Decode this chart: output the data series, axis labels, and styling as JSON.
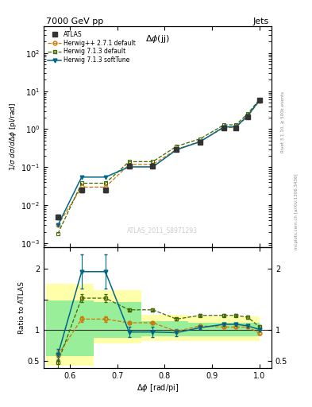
{
  "title_left": "7000 GeV pp",
  "title_right": "Jets",
  "plot_label": "$\\Delta\\phi$(jj)",
  "watermark": "ATLAS_2011_S8971293",
  "ylabel_main": "1/σ;dσ/dΔφ [pl/rad]",
  "ylabel_ratio": "Ratio to ATLAS",
  "xlabel": "Δφ [rad/pi]",
  "right_label": "Rivet 3.1.10, ≥ 500k events",
  "right_label2": "mcplots.cern.ch [arXiv:1306.3436]",
  "atlas_x": [
    0.575,
    0.625,
    0.675,
    0.725,
    0.775,
    0.825,
    0.875,
    0.925,
    0.95,
    0.975,
    1.0
  ],
  "atlas_y": [
    0.005,
    0.025,
    0.025,
    0.105,
    0.105,
    0.3,
    0.45,
    1.05,
    1.05,
    2.1,
    5.8
  ],
  "atlas_yerr": [
    0.0008,
    0.003,
    0.003,
    0.01,
    0.01,
    0.025,
    0.04,
    0.08,
    0.08,
    0.15,
    0.4
  ],
  "herwig271_x": [
    0.575,
    0.625,
    0.675,
    0.725,
    0.775,
    0.825,
    0.875,
    0.925,
    0.95,
    0.975,
    1.0
  ],
  "herwig271_y": [
    0.003,
    0.03,
    0.03,
    0.118,
    0.118,
    0.295,
    0.48,
    1.1,
    1.1,
    2.2,
    5.5
  ],
  "herwig713_x": [
    0.575,
    0.625,
    0.675,
    0.725,
    0.775,
    0.825,
    0.875,
    0.925,
    0.95,
    0.975,
    1.0
  ],
  "herwig713_y": [
    0.0018,
    0.038,
    0.038,
    0.14,
    0.14,
    0.355,
    0.56,
    1.3,
    1.3,
    2.55,
    6.1
  ],
  "herwig713soft_x": [
    0.575,
    0.625,
    0.675,
    0.725,
    0.775,
    0.825,
    0.875,
    0.925,
    0.95,
    0.975,
    1.0
  ],
  "herwig713soft_y": [
    0.003,
    0.055,
    0.055,
    0.102,
    0.102,
    0.288,
    0.47,
    1.15,
    1.15,
    2.25,
    5.85
  ],
  "ratio_herwig271_x": [
    0.575,
    0.625,
    0.675,
    0.725,
    0.775,
    0.825,
    0.875,
    0.925,
    0.95,
    0.975,
    1.0
  ],
  "ratio_herwig271_y": [
    0.6,
    1.18,
    1.18,
    1.12,
    1.12,
    0.98,
    1.07,
    1.05,
    1.05,
    1.05,
    0.95
  ],
  "ratio_herwig271_ye": [
    0.07,
    0.05,
    0.05,
    0.015,
    0.015,
    0.012,
    0.012,
    0.015,
    0.015,
    0.02,
    0.025
  ],
  "ratio_herwig713_x": [
    0.575,
    0.625,
    0.675,
    0.725,
    0.775,
    0.825,
    0.875,
    0.925,
    0.95,
    0.975,
    1.0
  ],
  "ratio_herwig713_y": [
    0.48,
    1.52,
    1.52,
    1.33,
    1.33,
    1.18,
    1.24,
    1.24,
    1.24,
    1.21,
    1.05
  ],
  "ratio_herwig713_ye": [
    0.09,
    0.07,
    0.07,
    0.02,
    0.02,
    0.016,
    0.016,
    0.02,
    0.02,
    0.025,
    0.03
  ],
  "ratio_herwig713soft_x": [
    0.575,
    0.625,
    0.675,
    0.725,
    0.775,
    0.825,
    0.875,
    0.925,
    0.95,
    0.975,
    1.0
  ],
  "ratio_herwig713soft_y": [
    0.6,
    1.95,
    1.95,
    0.97,
    0.97,
    0.96,
    1.04,
    1.095,
    1.095,
    1.07,
    1.01
  ],
  "ratio_herwig713soft_ye": [
    0.09,
    0.28,
    0.28,
    0.08,
    0.08,
    0.06,
    0.02,
    0.02,
    0.02,
    0.025,
    0.03
  ],
  "band_x_edges": [
    0.55,
    0.6,
    0.65,
    0.7,
    0.75,
    0.8,
    0.85,
    0.9,
    0.95,
    1.0
  ],
  "band_yellow_lo": [
    0.42,
    0.42,
    0.78,
    0.78,
    0.82,
    0.82,
    0.82,
    0.82,
    0.82,
    0.82
  ],
  "band_yellow_hi": [
    1.75,
    1.75,
    1.65,
    1.65,
    1.25,
    1.25,
    1.22,
    1.22,
    1.22,
    1.22
  ],
  "band_green_lo": [
    0.58,
    0.58,
    0.88,
    0.88,
    0.9,
    0.9,
    0.9,
    0.9,
    0.9,
    0.9
  ],
  "band_green_hi": [
    1.48,
    1.48,
    1.45,
    1.45,
    1.15,
    1.15,
    1.12,
    1.12,
    1.12,
    1.12
  ],
  "atlas_color": "#333333",
  "herwig271_color": "#cc7700",
  "herwig713_color": "#446600",
  "herwig713soft_color": "#006688",
  "yellow_color": "#ffffaa",
  "green_color": "#99ee99",
  "ylim_main": [
    0.0008,
    500
  ],
  "ylim_ratio": [
    0.38,
    2.35
  ],
  "xlim": [
    0.545,
    1.025
  ],
  "xticks": [
    0.6,
    0.7,
    0.8,
    0.9,
    1.0
  ]
}
